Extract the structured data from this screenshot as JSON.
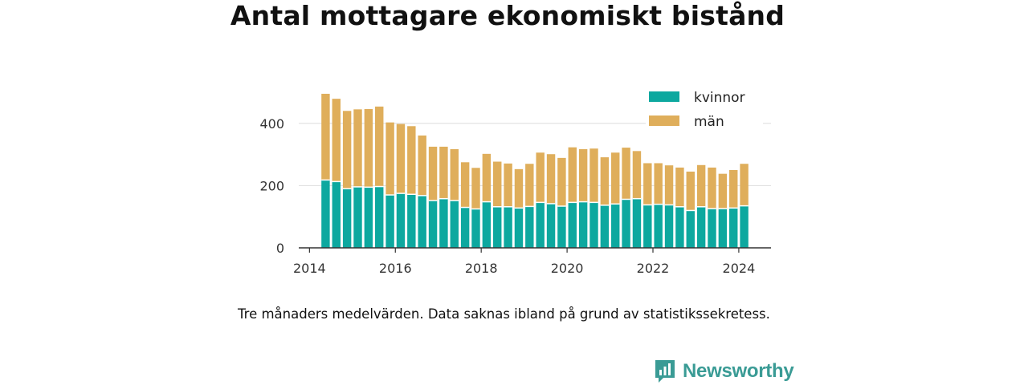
{
  "page": {
    "title": "Antal mottagare ekonomiskt bistånd",
    "caption": "Tre månaders medelvärden. Data saknas ibland på grund av statistikssekretess.",
    "brand": "Newsworthy"
  },
  "colors": {
    "kvinnor": "#0da89f",
    "man": "#dfae5b",
    "gridline": "#dddddd",
    "axis": "#333333",
    "brand": "#3a9b95"
  },
  "chart_data": {
    "type": "bar",
    "stacked": true,
    "title": "Antal mottagare ekonomiskt bistånd",
    "xlabel": "",
    "ylabel": "",
    "ylim": [
      0,
      500
    ],
    "yticks": [
      0,
      200,
      400
    ],
    "xlim": [
      2013.75,
      2024.75
    ],
    "xticks": [
      "2014",
      "2016",
      "2018",
      "2020",
      "2022",
      "2024"
    ],
    "xtick_values": [
      2014,
      2016,
      2018,
      2020,
      2022,
      2024
    ],
    "grid": true,
    "legend_position": "top-right",
    "x": [
      "2014-05",
      "2014-08",
      "2014-11",
      "2015-02",
      "2015-05",
      "2015-08",
      "2015-11",
      "2016-02",
      "2016-05",
      "2016-08",
      "2016-11",
      "2017-02",
      "2017-05",
      "2017-08",
      "2017-11",
      "2018-02",
      "2018-05",
      "2018-08",
      "2018-11",
      "2019-02",
      "2019-05",
      "2019-08",
      "2019-11",
      "2020-02",
      "2020-05",
      "2020-08",
      "2020-11",
      "2021-02",
      "2021-05",
      "2021-08",
      "2021-11",
      "2022-02",
      "2022-05",
      "2022-08",
      "2022-11",
      "2023-02",
      "2023-05",
      "2023-08",
      "2023-11",
      "2024-02"
    ],
    "series": [
      {
        "name": "kvinnor",
        "values": [
          218,
          213,
          190,
          196,
          195,
          197,
          170,
          175,
          172,
          168,
          152,
          158,
          152,
          130,
          125,
          148,
          132,
          132,
          128,
          133,
          146,
          142,
          134,
          146,
          148,
          146,
          137,
          141,
          156,
          158,
          138,
          140,
          138,
          132,
          120,
          132,
          126,
          126,
          128,
          135
        ]
      },
      {
        "name": "män",
        "values": [
          277,
          266,
          250,
          249,
          251,
          257,
          233,
          223,
          219,
          193,
          173,
          167,
          165,
          145,
          132,
          154,
          145,
          139,
          125,
          137,
          160,
          159,
          155,
          177,
          169,
          173,
          154,
          165,
          166,
          153,
          134,
          132,
          127,
          126,
          125,
          134,
          132,
          112,
          122,
          135
        ]
      }
    ]
  }
}
